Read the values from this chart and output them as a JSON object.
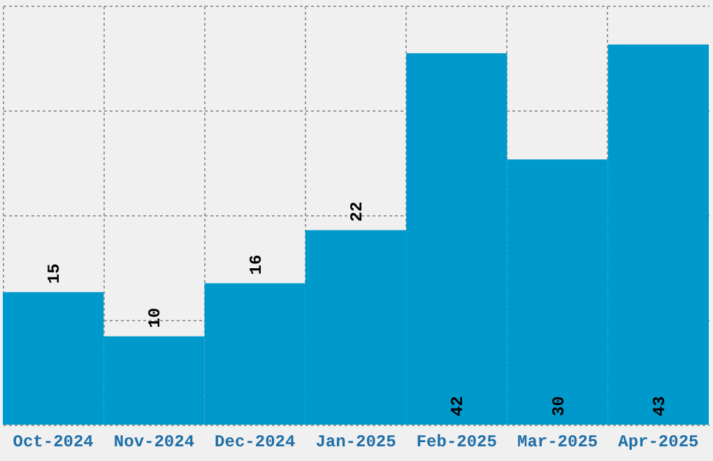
{
  "chart_data": {
    "type": "bar",
    "categories": [
      "Oct-2024",
      "Nov-2024",
      "Dec-2024",
      "Jan-2025",
      "Feb-2025",
      "Mar-2025",
      "Apr-2025"
    ],
    "values": [
      15,
      10,
      16,
      22,
      42,
      30,
      43
    ],
    "color": "#0099cc",
    "ylim": [
      0,
      47.4
    ],
    "yticks": [
      {
        "value": 0,
        "label": null
      },
      {
        "value": 11.85,
        "label": null
      },
      {
        "value": 23.7,
        "label": null
      },
      {
        "value": 35.55,
        "label": null
      },
      {
        "value": 47.4,
        "label": null
      }
    ],
    "grid": true,
    "data_labels": true
  }
}
